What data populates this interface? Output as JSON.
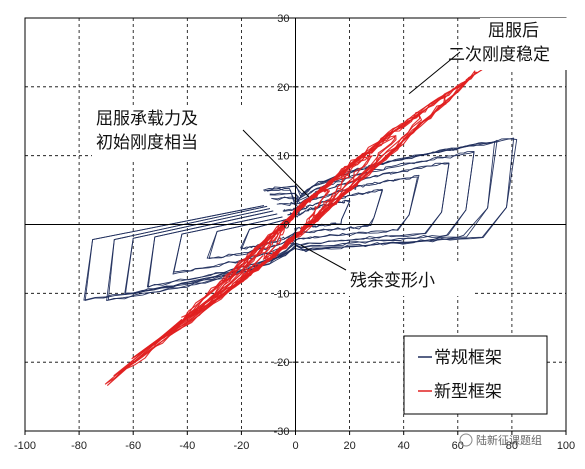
{
  "chart_data": {
    "type": "line",
    "xlim": [
      -100,
      100
    ],
    "ylim": [
      -30,
      30
    ],
    "x_ticks": [
      "-100",
      "-80",
      "-60",
      "-40",
      "-20",
      "0",
      "20",
      "40",
      "60",
      "80",
      "100"
    ],
    "y_ticks": [
      "30",
      "20",
      "10",
      "0",
      "-10",
      "-20",
      "-30"
    ],
    "grid": true,
    "legend_position": "bottom-right",
    "legend": [
      {
        "label": "常规框架",
        "color": "#1f2d5c"
      },
      {
        "label": "新型框架",
        "color": "#e02020"
      }
    ],
    "annotations": [
      {
        "lines": [
          "屈服后",
          "二次刚度稳定"
        ],
        "target": [
          42,
          19
        ]
      },
      {
        "lines": [
          "屈服承载力及",
          "初始刚度相当"
        ],
        "target": [
          5,
          4
        ]
      },
      {
        "lines": [
          "残余变形小"
        ],
        "target": [
          2,
          -3
        ]
      }
    ],
    "series": [
      {
        "name": "常规框架",
        "color": "#1f2d5c",
        "loops": [
          {
            "xmax": 20,
            "xmin": -20,
            "ymax": 3.5,
            "ymin": -3.5
          },
          {
            "xmax": 32,
            "xmin": -32,
            "ymax": 5,
            "ymin": -5
          },
          {
            "xmax": 45,
            "xmin": -45,
            "ymax": 7,
            "ymin": -7
          },
          {
            "xmax": 57,
            "xmin": -55,
            "ymax": 9,
            "ymin": -9
          },
          {
            "xmax": 66,
            "xmin": -63,
            "ymax": 10.5,
            "ymin": -10
          },
          {
            "xmax": 74,
            "xmin": -70,
            "ymax": 12,
            "ymin": -11
          },
          {
            "xmax": 81,
            "xmin": -78,
            "ymax": 12.5,
            "ymin": -11
          }
        ]
      },
      {
        "name": "新型框架",
        "color": "#e02020",
        "loops": [
          {
            "xmax": 12,
            "xmin": -12,
            "ymax": 5,
            "ymin": -5
          },
          {
            "xmax": 20,
            "xmin": -20,
            "ymax": 7.5,
            "ymin": -7.5
          },
          {
            "xmax": 28,
            "xmin": -30,
            "ymax": 10,
            "ymin": -10.5
          },
          {
            "xmax": 37,
            "xmin": -40,
            "ymax": 13,
            "ymin": -13.5
          },
          {
            "xmax": 46,
            "xmin": -50,
            "ymax": 16,
            "ymin": -16.5
          },
          {
            "xmax": 55,
            "xmin": -60,
            "ymax": 19,
            "ymin": -19.5
          },
          {
            "xmax": 63,
            "xmin": -67,
            "ymax": 21,
            "ymin": -22
          },
          {
            "xmax": 67,
            "xmin": -70,
            "ymax": 22,
            "ymin": -23
          }
        ]
      }
    ]
  },
  "watermark": "陆新征课题组",
  "colors": {
    "grid": "#000000",
    "axis": "#000000",
    "background": "#ffffff"
  }
}
